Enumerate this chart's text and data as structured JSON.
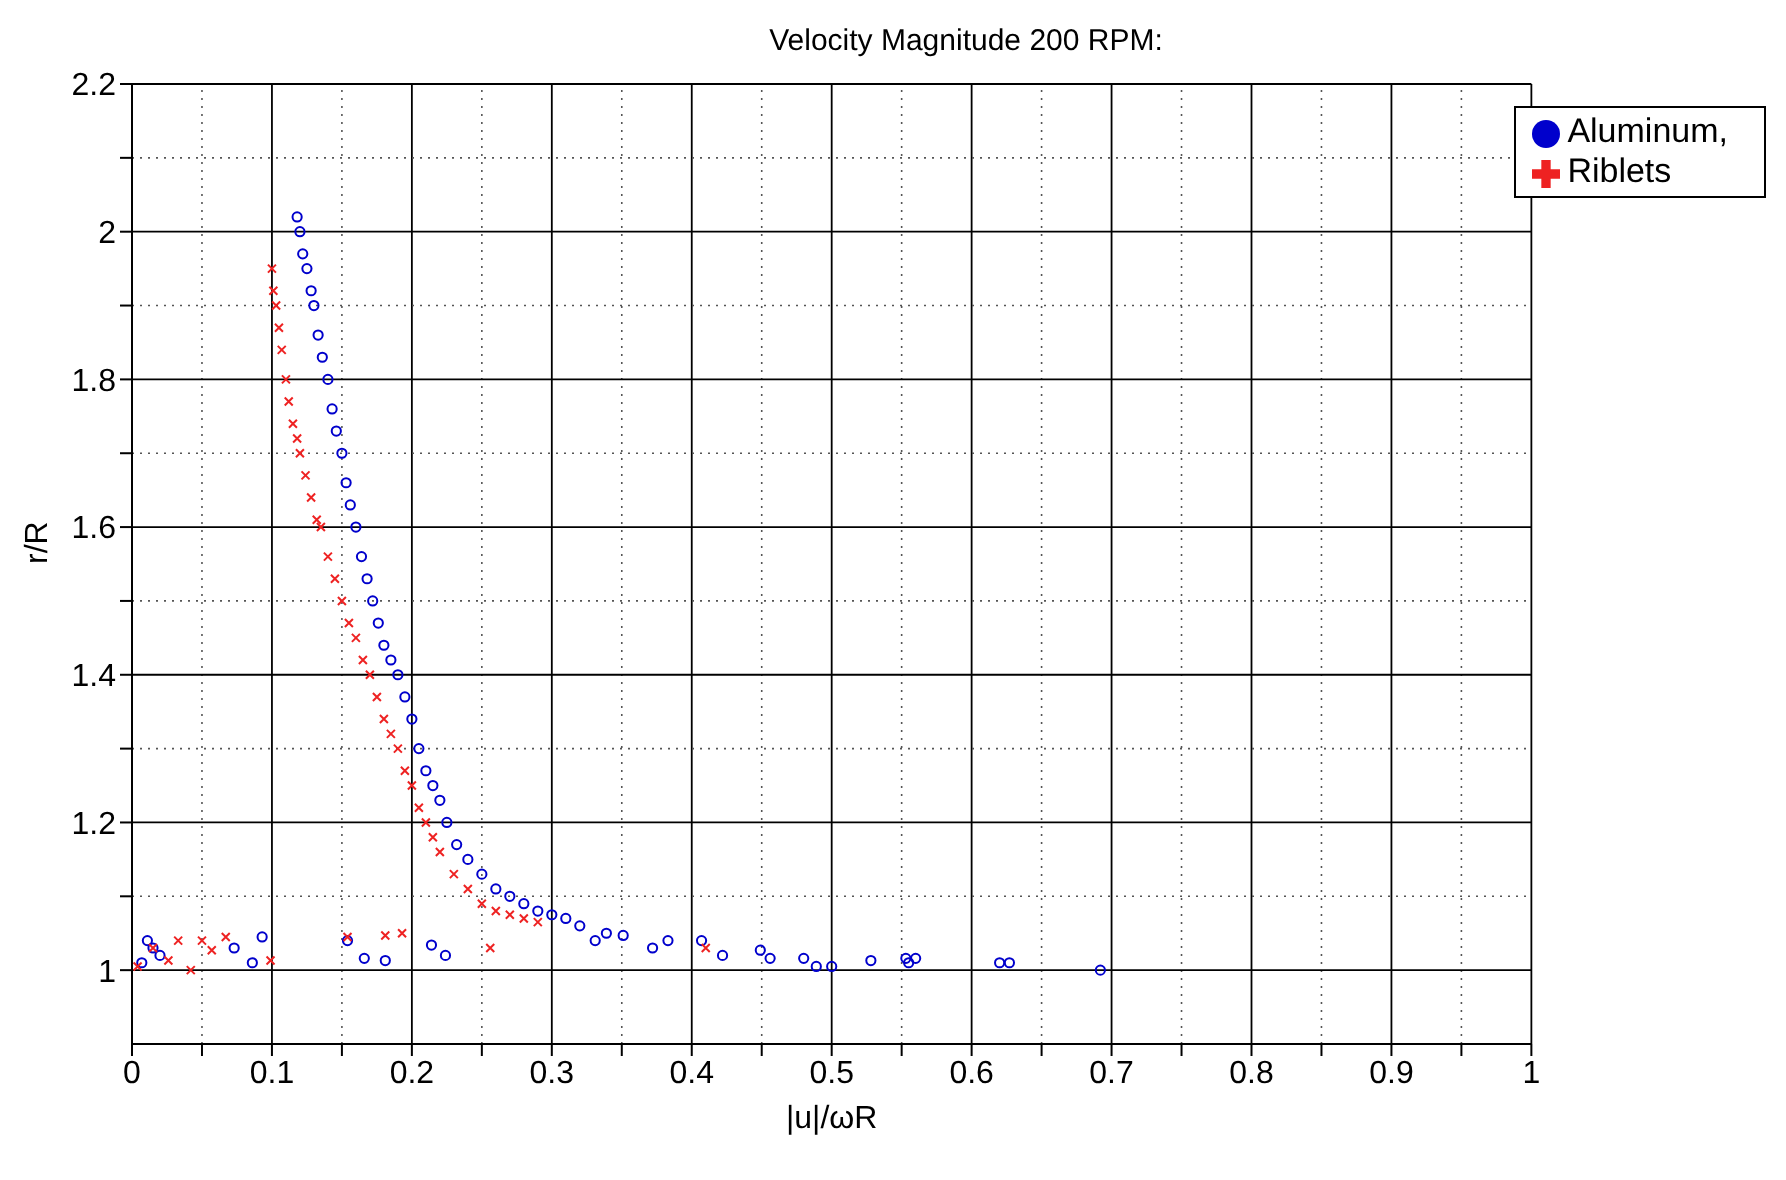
{
  "chart_data": {
    "type": "scatter",
    "title": "Velocity Magnitude 200 RPM:",
    "xlabel": "|u|/ωR",
    "ylabel": "r/R",
    "xlim": [
      0,
      1
    ],
    "ylim": [
      0.9,
      2.2
    ],
    "xticks": [
      0,
      {
        "value": 0.05,
        "label": null
      },
      0.1,
      {
        "value": 0.15,
        "label": null
      },
      0.2,
      {
        "value": 0.25,
        "label": null
      },
      0.3,
      {
        "value": 0.35,
        "label": null
      },
      0.4,
      {
        "value": 0.45,
        "label": null
      },
      0.5,
      {
        "value": 0.55,
        "label": null
      },
      0.6,
      {
        "value": 0.65,
        "label": null
      },
      0.7,
      {
        "value": 0.75,
        "label": null
      },
      0.8,
      {
        "value": 0.85,
        "label": null
      },
      0.9,
      {
        "value": 0.95,
        "label": null
      },
      1
    ],
    "yticks": [
      1,
      {
        "value": 1.1,
        "label": null
      },
      1.2,
      {
        "value": 1.3,
        "label": null
      },
      1.4,
      {
        "value": 1.5,
        "label": null
      },
      1.6,
      {
        "value": 1.7,
        "label": null
      },
      1.8,
      {
        "value": 1.9,
        "label": null
      },
      2,
      {
        "value": 2.1,
        "label": null
      },
      2.2
    ],
    "grid": true,
    "legend": "top right",
    "series": [
      {
        "name": "Aluminum,",
        "color": "#0000cc",
        "marker": "circle",
        "x": [
          0.118,
          0.12,
          0.122,
          0.125,
          0.128,
          0.13,
          0.133,
          0.136,
          0.14,
          0.143,
          0.146,
          0.15,
          0.153,
          0.156,
          0.16,
          0.164,
          0.168,
          0.172,
          0.176,
          0.18,
          0.185,
          0.19,
          0.195,
          0.2,
          0.205,
          0.21,
          0.215,
          0.22,
          0.225,
          0.232,
          0.24,
          0.25,
          0.26,
          0.27,
          0.28,
          0.29,
          0.3,
          0.31,
          0.32,
          0.331,
          0.339,
          0.351,
          0.372,
          0.383,
          0.407,
          0.422,
          0.449,
          0.456,
          0.48,
          0.489,
          0.5,
          0.528,
          0.553,
          0.555,
          0.56,
          0.62,
          0.627,
          0.692,
          0.011,
          0.007,
          0.093,
          0.086,
          0.073,
          0.154,
          0.166,
          0.181,
          0.214,
          0.224,
          0.015,
          0.02
        ],
        "values": [
          2.02,
          2.0,
          1.97,
          1.95,
          1.92,
          1.9,
          1.86,
          1.83,
          1.8,
          1.76,
          1.73,
          1.7,
          1.66,
          1.63,
          1.6,
          1.56,
          1.53,
          1.5,
          1.47,
          1.44,
          1.42,
          1.4,
          1.37,
          1.34,
          1.3,
          1.27,
          1.25,
          1.23,
          1.2,
          1.17,
          1.15,
          1.13,
          1.11,
          1.1,
          1.09,
          1.08,
          1.075,
          1.07,
          1.06,
          1.04,
          1.05,
          1.047,
          1.03,
          1.04,
          1.04,
          1.02,
          1.027,
          1.016,
          1.016,
          1.005,
          1.005,
          1.013,
          1.016,
          1.01,
          1.016,
          1.01,
          1.01,
          1.0,
          1.04,
          1.01,
          1.045,
          1.01,
          1.03,
          1.04,
          1.016,
          1.013,
          1.034,
          1.02,
          1.03,
          1.02
        ]
      },
      {
        "name": "Riblets",
        "color": "#ee2222",
        "marker": "cross",
        "x": [
          0.1,
          0.101,
          0.103,
          0.105,
          0.107,
          0.11,
          0.112,
          0.115,
          0.118,
          0.12,
          0.124,
          0.128,
          0.132,
          0.135,
          0.14,
          0.145,
          0.15,
          0.155,
          0.16,
          0.165,
          0.17,
          0.175,
          0.18,
          0.185,
          0.19,
          0.195,
          0.2,
          0.205,
          0.21,
          0.215,
          0.22,
          0.23,
          0.24,
          0.25,
          0.26,
          0.27,
          0.28,
          0.29,
          0.033,
          0.05,
          0.042,
          0.057,
          0.067,
          0.099,
          0.154,
          0.181,
          0.193,
          0.256,
          0.41,
          0.004,
          0.026,
          0.015
        ],
        "values": [
          1.95,
          1.92,
          1.9,
          1.87,
          1.84,
          1.8,
          1.77,
          1.74,
          1.72,
          1.7,
          1.67,
          1.64,
          1.61,
          1.6,
          1.56,
          1.53,
          1.5,
          1.47,
          1.45,
          1.42,
          1.4,
          1.37,
          1.34,
          1.32,
          1.3,
          1.27,
          1.25,
          1.22,
          1.2,
          1.18,
          1.16,
          1.13,
          1.11,
          1.09,
          1.08,
          1.075,
          1.07,
          1.065,
          1.04,
          1.04,
          1.0,
          1.027,
          1.045,
          1.013,
          1.045,
          1.047,
          1.05,
          1.03,
          1.03,
          1.005,
          1.013,
          1.03
        ]
      }
    ]
  }
}
